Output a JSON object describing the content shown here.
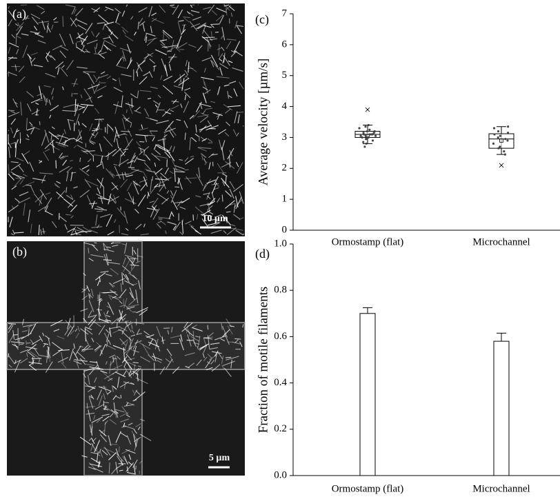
{
  "panels": [
    {
      "label": "(a)",
      "scale_bar": "10 µm"
    },
    {
      "label": "(b)",
      "scale_bar": "5 µm"
    }
  ],
  "chart_data": [
    {
      "type": "box",
      "label": "(c)",
      "ylabel": "Average velocity [µm/s]",
      "categories": [
        "Ormostamp  (flat)",
        "Microchannel"
      ],
      "ylim": [
        0,
        7
      ],
      "yticks": [
        0,
        1,
        2,
        3,
        4,
        5,
        6,
        7
      ],
      "color": "#000000",
      "boxes": [
        {
          "whisker_low": 2.8,
          "q1": 3.0,
          "median": 3.1,
          "q3": 3.2,
          "whisker_high": 3.4,
          "mean": 3.05,
          "outliers": [
            3.9
          ],
          "points": [
            2.7,
            2.8,
            2.85,
            2.9,
            2.95,
            3.0,
            3.0,
            3.05,
            3.05,
            3.1,
            3.1,
            3.1,
            3.15,
            3.15,
            3.2,
            3.2,
            3.25,
            3.3,
            3.35,
            3.4,
            3.0,
            2.95,
            3.1,
            3.05
          ]
        },
        {
          "whisker_low": 2.45,
          "q1": 2.65,
          "median": 2.95,
          "q3": 3.12,
          "whisker_high": 3.35,
          "mean": 2.9,
          "outliers": [
            2.1
          ],
          "points": [
            2.45,
            2.55,
            2.65,
            2.7,
            2.8,
            2.9,
            2.95,
            3.0,
            3.05,
            3.1,
            3.15,
            3.2,
            3.3,
            3.35
          ]
        }
      ]
    },
    {
      "type": "bar",
      "label": "(d)",
      "ylabel": "Fraction of motile filaments",
      "categories": [
        "Ormostamp  (flat)",
        "Microchannel"
      ],
      "values": [
        0.7,
        0.58
      ],
      "errors": [
        0.025,
        0.035
      ],
      "color": "#ffffff",
      "ylim": [
        0,
        1.0
      ],
      "yticks": [
        {
          "value": 0,
          "label": "0.0"
        },
        0.2,
        0.4,
        0.6,
        0.8,
        {
          "value": 1.0,
          "label": "1.0"
        }
      ]
    }
  ]
}
